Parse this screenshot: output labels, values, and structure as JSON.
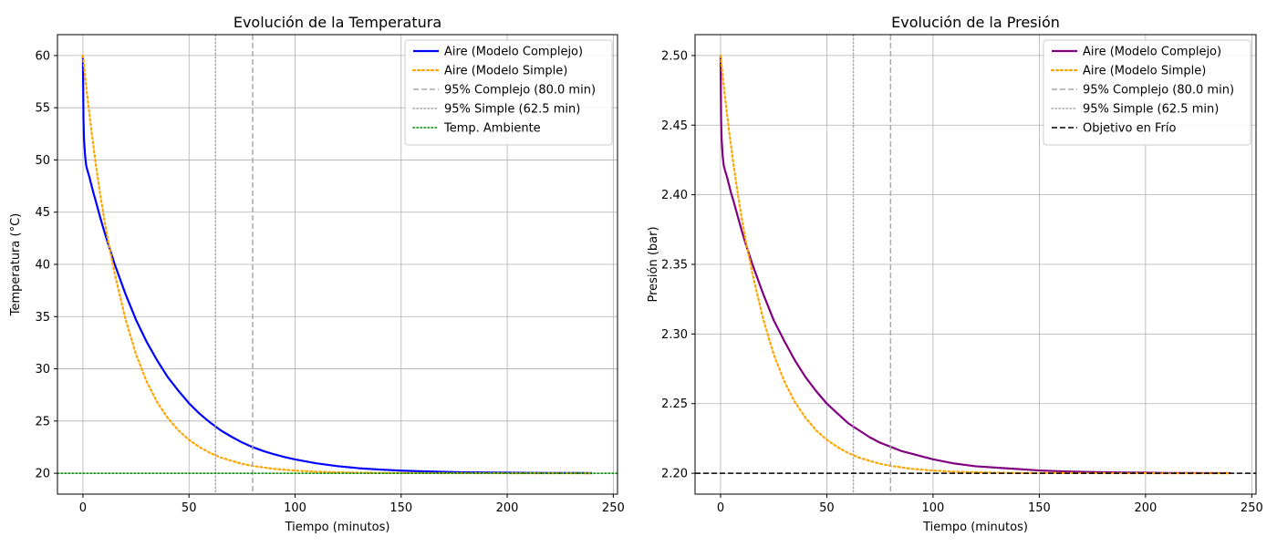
{
  "chart_data": [
    {
      "type": "line",
      "title": "Evolución de la Temperatura",
      "xlabel": "Tiempo (minutos)",
      "ylabel": "Temperatura (°C)",
      "xlim": [
        -12,
        252
      ],
      "ylim": [
        18,
        62
      ],
      "xticks": [
        0,
        50,
        100,
        150,
        200,
        250
      ],
      "yticks": [
        20,
        25,
        30,
        35,
        40,
        45,
        50,
        55,
        60
      ],
      "grid": true,
      "legend_position": "top-right",
      "series": [
        {
          "name": "Aire (Modelo Complejo)",
          "color": "#0000ff",
          "style": "solid",
          "x": [
            0,
            0.25,
            0.5,
            1,
            1.5,
            2,
            3,
            4,
            5,
            6,
            8,
            10,
            12,
            15,
            20,
            25,
            30,
            35,
            40,
            45,
            50,
            55,
            60,
            65,
            70,
            75,
            80,
            85,
            90,
            95,
            100,
            110,
            120,
            130,
            140,
            150,
            160,
            170,
            180,
            190,
            200,
            210,
            220,
            230,
            240
          ],
          "y": [
            60,
            54,
            52,
            50.5,
            49.5,
            49.1,
            48.4,
            47.6,
            46.8,
            46.1,
            44.6,
            43.2,
            41.9,
            40.0,
            37.2,
            34.7,
            32.6,
            30.8,
            29.2,
            27.9,
            26.7,
            25.7,
            24.85,
            24.1,
            23.5,
            22.95,
            22.5,
            22.13,
            21.82,
            21.55,
            21.32,
            20.95,
            20.68,
            20.48,
            20.35,
            20.25,
            20.18,
            20.13,
            20.09,
            20.07,
            20.05,
            20.03,
            20.02,
            20.02,
            20.01
          ]
        },
        {
          "name": "Aire (Modelo Simple)",
          "color": "#ffa500",
          "style": "dotted",
          "x": [
            0,
            2,
            4,
            6,
            8,
            10,
            12,
            15,
            20,
            25,
            30,
            35,
            40,
            45,
            50,
            55,
            60,
            65,
            70,
            75,
            80,
            90,
            100,
            110,
            120,
            130,
            140,
            150,
            170,
            200,
            240
          ],
          "y": [
            60,
            56.2,
            52.8,
            49.7,
            46.9,
            44.4,
            42.1,
            39.1,
            34.8,
            31.4,
            28.8,
            26.8,
            25.3,
            24.1,
            23.2,
            22.5,
            21.94,
            21.5,
            21.2,
            20.9,
            20.7,
            20.42,
            20.25,
            20.15,
            20.09,
            20.05,
            20.03,
            20.02,
            20.01,
            20.0,
            20.0
          ]
        },
        {
          "name": "95% Complejo (80.0 min)",
          "color": "#a9a9a9",
          "style": "dashed",
          "vline": 80
        },
        {
          "name": "95% Simple (62.5 min)",
          "color": "#a9a9a9",
          "style": "dotted",
          "vline": 62.5
        },
        {
          "name": "Temp. Ambiente",
          "color": "#008000",
          "style": "dotted",
          "hline": 20
        }
      ]
    },
    {
      "type": "line",
      "title": "Evolución de la Presión",
      "xlabel": "Tiempo (minutos)",
      "ylabel": "Presión (bar)",
      "xlim": [
        -12,
        252
      ],
      "ylim": [
        2.185,
        2.515
      ],
      "xticks": [
        0,
        50,
        100,
        150,
        200,
        250
      ],
      "yticks": [
        2.2,
        2.25,
        2.3,
        2.35,
        2.4,
        2.45,
        2.5
      ],
      "ytick_decimals": 2,
      "grid": true,
      "legend_position": "top-right",
      "series": [
        {
          "name": "Aire (Modelo Complejo)",
          "color": "#800080",
          "style": "solid",
          "x": [
            0,
            0.25,
            0.5,
            1,
            1.5,
            2,
            3,
            4,
            5,
            6,
            8,
            10,
            12,
            15,
            20,
            25,
            30,
            35,
            40,
            45,
            50,
            55,
            60,
            65,
            70,
            75,
            80,
            85,
            90,
            95,
            100,
            110,
            120,
            130,
            140,
            150,
            160,
            170,
            180,
            190,
            200,
            210,
            220,
            230,
            240
          ],
          "y": [
            2.5,
            2.455,
            2.44,
            2.428,
            2.421,
            2.418,
            2.413,
            2.407,
            2.401,
            2.396,
            2.385,
            2.374,
            2.364,
            2.35,
            2.329,
            2.31,
            2.295,
            2.281,
            2.269,
            2.259,
            2.25,
            2.243,
            2.236,
            2.231,
            2.226,
            2.222,
            2.219,
            2.216,
            2.214,
            2.212,
            2.21,
            2.207,
            2.205,
            2.204,
            2.203,
            2.202,
            2.2014,
            2.201,
            2.2007,
            2.2005,
            2.2004,
            2.2002,
            2.2002,
            2.2001,
            2.2001
          ]
        },
        {
          "name": "Aire (Modelo Simple)",
          "color": "#ffa500",
          "style": "dotted",
          "x": [
            0,
            2,
            4,
            6,
            8,
            10,
            12,
            15,
            20,
            25,
            30,
            35,
            40,
            45,
            50,
            55,
            60,
            65,
            70,
            75,
            80,
            90,
            100,
            110,
            120,
            130,
            140,
            150,
            170,
            200,
            240
          ],
          "y": [
            2.5,
            2.4715,
            2.446,
            2.4228,
            2.4018,
            2.383,
            2.3658,
            2.3433,
            2.311,
            2.2855,
            2.266,
            2.251,
            2.2398,
            2.2308,
            2.224,
            2.2188,
            2.2146,
            2.2113,
            2.209,
            2.2068,
            2.2053,
            2.2032,
            2.2019,
            2.2011,
            2.2007,
            2.2004,
            2.2002,
            2.2002,
            2.2001,
            2.2,
            2.2
          ]
        },
        {
          "name": "95% Complejo (80.0 min)",
          "color": "#a9a9a9",
          "style": "dashed",
          "vline": 80
        },
        {
          "name": "95% Simple (62.5 min)",
          "color": "#a9a9a9",
          "style": "dotted",
          "vline": 62.5
        },
        {
          "name": "Objetivo en Frío",
          "color": "#000000",
          "style": "dashed",
          "hline": 2.2
        }
      ]
    }
  ]
}
